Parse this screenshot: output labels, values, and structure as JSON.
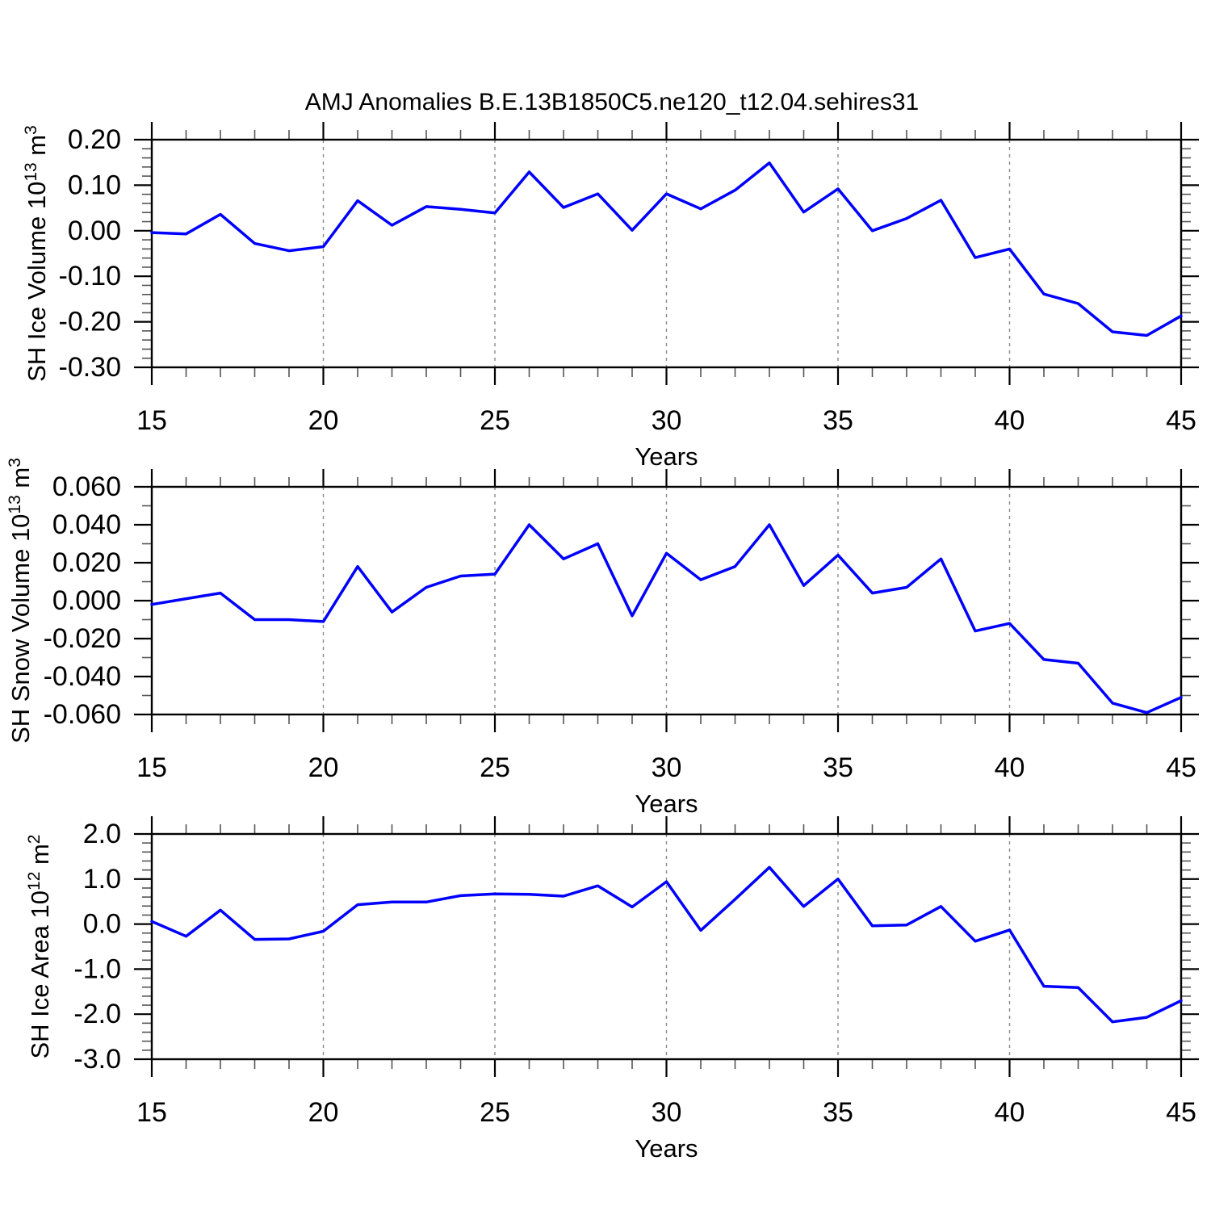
{
  "title": "AMJ Anomalies B.E.13B1850C5.ne120_t12.04.sehires31",
  "x_axis": {
    "label": "Years",
    "min": 15,
    "max": 45,
    "major_step": 5,
    "minor_step": 1,
    "tick_labels": [
      "15",
      "20",
      "25",
      "30",
      "35",
      "40",
      "45"
    ],
    "grid_years": [
      20,
      25,
      30,
      35,
      40
    ]
  },
  "line_color": "#0000ff",
  "grid_color": "#8a8a8a",
  "chart_data": [
    {
      "type": "line",
      "name": "sh-ice-volume",
      "ylabel": "SH Ice Volume 10^13 m^3",
      "ylim": [
        -0.3,
        0.2
      ],
      "yminor_step": 0.02,
      "yticks": [
        {
          "v": 0.2,
          "label": "0.20"
        },
        {
          "v": 0.1,
          "label": "0.10"
        },
        {
          "v": 0.0,
          "label": "0.00"
        },
        {
          "v": -0.1,
          "label": "-0.10"
        },
        {
          "v": -0.2,
          "label": "-0.20"
        },
        {
          "v": -0.3,
          "label": "-0.30"
        }
      ],
      "x": [
        15,
        16,
        17,
        18,
        19,
        20,
        21,
        22,
        23,
        24,
        25,
        26,
        27,
        28,
        29,
        30,
        31,
        32,
        33,
        34,
        35,
        36,
        37,
        38,
        39,
        40,
        41,
        42,
        43,
        44,
        45
      ],
      "values": [
        -0.004,
        -0.007,
        0.036,
        -0.028,
        -0.044,
        -0.035,
        0.066,
        0.012,
        0.053,
        0.047,
        0.039,
        0.129,
        0.051,
        0.081,
        0.001,
        0.081,
        0.048,
        0.089,
        0.149,
        0.041,
        0.092,
        0.0,
        0.027,
        0.067,
        -0.059,
        -0.04,
        -0.139,
        -0.16,
        -0.222,
        -0.23,
        -0.187
      ]
    },
    {
      "type": "line",
      "name": "sh-snow-volume",
      "ylabel": "SH Snow Volume 10^13 m^3",
      "ylim": [
        -0.06,
        0.06
      ],
      "yminor_step": 0.01,
      "yticks": [
        {
          "v": 0.06,
          "label": "0.060"
        },
        {
          "v": 0.04,
          "label": "0.040"
        },
        {
          "v": 0.02,
          "label": "0.020"
        },
        {
          "v": 0.0,
          "label": "0.000"
        },
        {
          "v": -0.02,
          "label": "-0.020"
        },
        {
          "v": -0.04,
          "label": "-0.040"
        },
        {
          "v": -0.06,
          "label": "-0.060"
        }
      ],
      "x": [
        15,
        16,
        17,
        18,
        19,
        20,
        21,
        22,
        23,
        24,
        25,
        26,
        27,
        28,
        29,
        30,
        31,
        32,
        33,
        34,
        35,
        36,
        37,
        38,
        39,
        40,
        41,
        42,
        43,
        44,
        45
      ],
      "values": [
        -0.002,
        0.001,
        0.004,
        -0.01,
        -0.01,
        -0.011,
        0.018,
        -0.006,
        0.007,
        0.013,
        0.014,
        0.04,
        0.022,
        0.03,
        -0.008,
        0.025,
        0.011,
        0.018,
        0.04,
        0.008,
        0.024,
        0.004,
        0.007,
        0.022,
        -0.016,
        -0.012,
        -0.031,
        -0.033,
        -0.054,
        -0.059,
        -0.051
      ]
    },
    {
      "type": "line",
      "name": "sh-ice-area",
      "ylabel": "SH Ice Area 10^12 m^2",
      "ylim": [
        -3.0,
        2.0
      ],
      "yminor_step": 0.2,
      "yticks": [
        {
          "v": 2.0,
          "label": "2.0"
        },
        {
          "v": 1.0,
          "label": "1.0"
        },
        {
          "v": 0.0,
          "label": "0.0"
        },
        {
          "v": -1.0,
          "label": "-1.0"
        },
        {
          "v": -2.0,
          "label": "-2.0"
        },
        {
          "v": -3.0,
          "label": "-3.0"
        }
      ],
      "x": [
        15,
        16,
        17,
        18,
        19,
        20,
        21,
        22,
        23,
        24,
        25,
        26,
        27,
        28,
        29,
        30,
        31,
        32,
        33,
        34,
        35,
        36,
        37,
        38,
        39,
        40,
        41,
        42,
        43,
        44,
        45
      ],
      "values": [
        0.06,
        -0.27,
        0.31,
        -0.34,
        -0.33,
        -0.16,
        0.43,
        0.49,
        0.49,
        0.63,
        0.67,
        0.66,
        0.62,
        0.85,
        0.38,
        0.94,
        -0.14,
        0.55,
        1.26,
        0.39,
        1.0,
        -0.04,
        -0.02,
        0.39,
        -0.38,
        -0.13,
        -1.38,
        -1.41,
        -2.17,
        -2.07,
        -1.7
      ]
    }
  ]
}
